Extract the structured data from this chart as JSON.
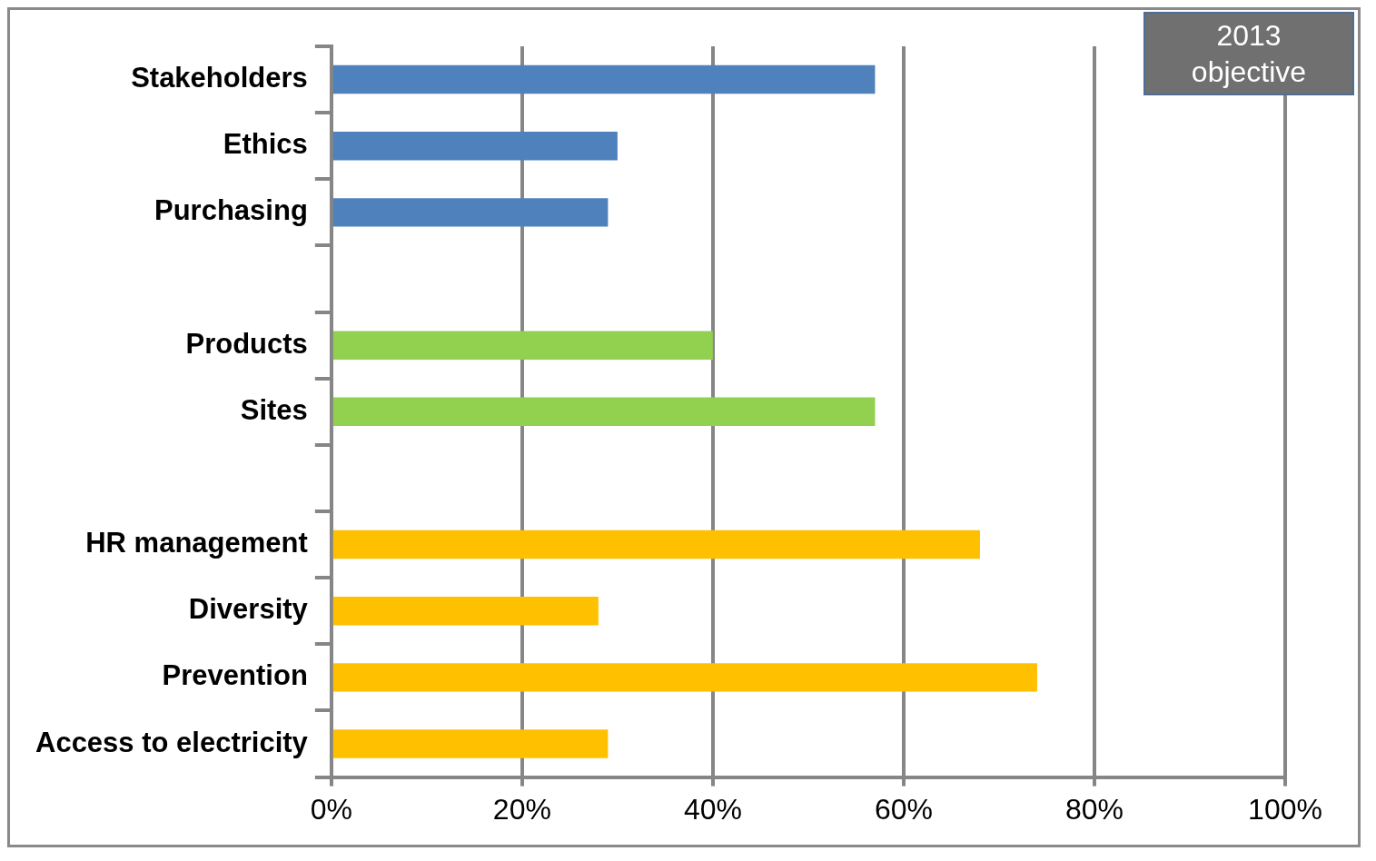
{
  "chart_data": {
    "type": "bar",
    "orientation": "horizontal",
    "categories": [
      "Stakeholders",
      "Ethics",
      "Purchasing",
      null,
      "Products",
      "Sites",
      null,
      "HR management",
      "Diversity",
      "Prevention",
      "Access to electricity"
    ],
    "values": [
      57,
      30,
      29,
      null,
      40,
      57,
      null,
      68,
      28,
      74,
      29
    ],
    "colors": [
      "#4f81bd",
      "#4f81bd",
      "#4f81bd",
      null,
      "#92d050",
      "#92d050",
      null,
      "#ffc000",
      "#ffc000",
      "#ffc000",
      "#ffc000"
    ],
    "xlim": [
      0,
      100
    ],
    "xticks": [
      {
        "value": 0,
        "label": "0%"
      },
      {
        "value": 20,
        "label": "20%"
      },
      {
        "value": 40,
        "label": "40%"
      },
      {
        "value": 60,
        "label": "60%"
      },
      {
        "value": 80,
        "label": "80%"
      },
      {
        "value": 100,
        "label": "100%"
      }
    ],
    "grid": "x",
    "legend": false,
    "annotations": [
      "2013 objective"
    ]
  }
}
